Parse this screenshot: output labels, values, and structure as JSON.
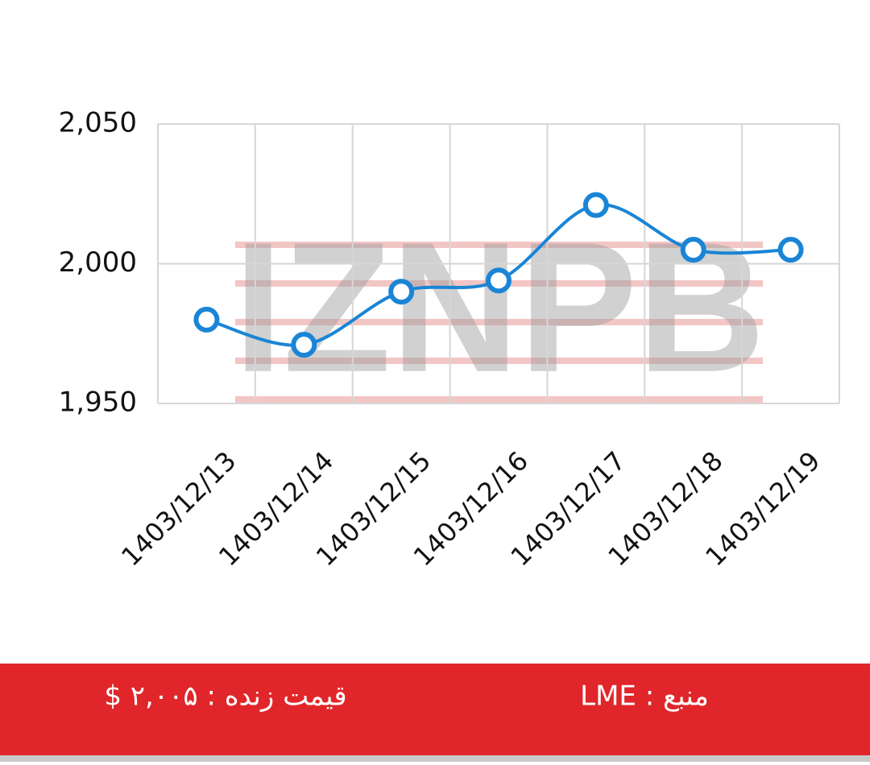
{
  "chart_data": {
    "type": "line",
    "categories": [
      "1403/12/13",
      "1403/12/14",
      "1403/12/15",
      "1403/12/16",
      "1403/12/17",
      "1403/12/18",
      "1403/12/19"
    ],
    "values": [
      1980,
      1971,
      1990,
      1994,
      2021,
      2005,
      2005
    ],
    "color": "#1a85d6",
    "ylim": [
      1950,
      2050
    ],
    "yticks": [
      {
        "value": 1950,
        "label": "1,950"
      },
      {
        "value": 2000,
        "label": "2,000"
      },
      {
        "value": 2050,
        "label": "2,050"
      }
    ],
    "grid": true,
    "smooth": true
  },
  "watermark": "IZNPB",
  "footer": {
    "price_label": "قیمت زنده : ۲,۰۰۵ $",
    "source_label": "منبع : LME"
  }
}
